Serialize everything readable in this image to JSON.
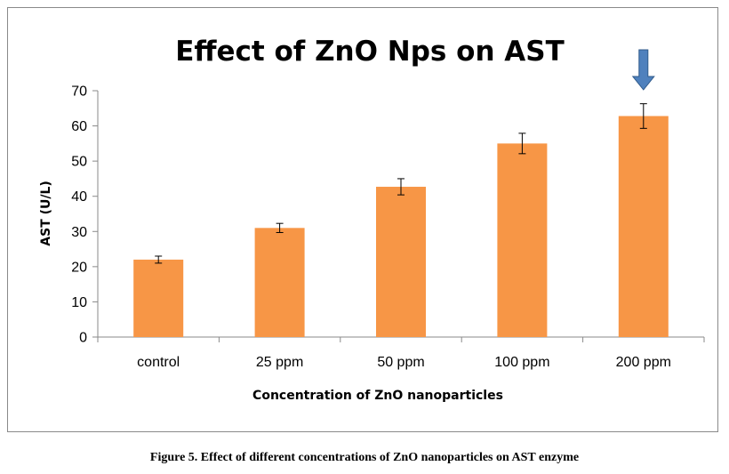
{
  "chart_data": {
    "type": "bar",
    "title": "Effect of ZnO Nps on AST",
    "xlabel": "Concentration of ZnO nanoparticles",
    "ylabel": "AST (U/L)",
    "categories": [
      "control",
      "25 ppm",
      "50 ppm",
      "100 ppm",
      "200 ppm"
    ],
    "values": [
      22,
      31,
      42.7,
      55,
      62.8
    ],
    "errors": [
      1,
      1.3,
      2.3,
      2.9,
      3.5
    ],
    "ylim": [
      0,
      70
    ],
    "yticks": [
      0,
      10,
      20,
      30,
      40,
      50,
      60,
      70
    ],
    "grid": false,
    "legend": "none",
    "highlight_index": 4,
    "bar_color": "#f79646",
    "arrow_color": "#4f81bd"
  },
  "caption": "Figure 5. Effect of different concentrations of ZnO nanoparticles on AST enzyme"
}
